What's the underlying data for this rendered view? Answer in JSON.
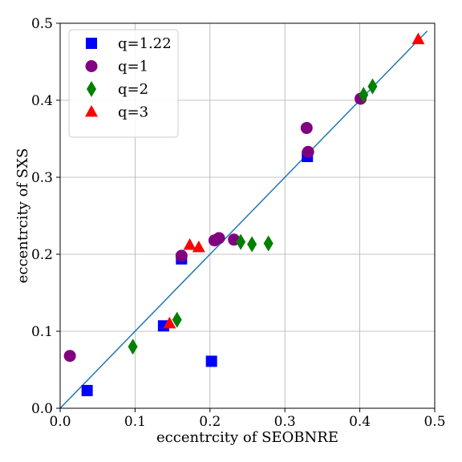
{
  "chart_data": {
    "type": "scatter",
    "title": "",
    "xlabel": "eccentrcity of SEOBNRE",
    "ylabel": "eccentrcity of SXS",
    "xlim": [
      0,
      0.5
    ],
    "ylim": [
      0,
      0.5
    ],
    "xticks": [
      "0.0",
      "0.1",
      "0.2",
      "0.3",
      "0.4",
      "0.5"
    ],
    "yticks": [
      "0.0",
      "0.1",
      "0.2",
      "0.3",
      "0.4",
      "0.5"
    ],
    "grid": true,
    "legend_position": "top-left",
    "reference_line": {
      "x": [
        0,
        0.49
      ],
      "y": [
        0,
        0.49
      ],
      "color": "#1f77b4"
    },
    "series": [
      {
        "name": "q=1.22",
        "marker": "square",
        "color": "#0000ff",
        "points": [
          [
            0.036,
            0.023
          ],
          [
            0.138,
            0.107
          ],
          [
            0.162,
            0.194
          ],
          [
            0.202,
            0.061
          ],
          [
            0.33,
            0.327
          ]
        ]
      },
      {
        "name": "q=1",
        "marker": "circle",
        "color": "#800080",
        "points": [
          [
            0.013,
            0.068
          ],
          [
            0.162,
            0.198
          ],
          [
            0.206,
            0.218
          ],
          [
            0.212,
            0.221
          ],
          [
            0.232,
            0.219
          ],
          [
            0.329,
            0.364
          ],
          [
            0.331,
            0.333
          ],
          [
            0.401,
            0.402
          ]
        ]
      },
      {
        "name": "q=2",
        "marker": "diamond",
        "color": "#008000",
        "points": [
          [
            0.097,
            0.08
          ],
          [
            0.156,
            0.115
          ],
          [
            0.241,
            0.216
          ],
          [
            0.256,
            0.213
          ],
          [
            0.278,
            0.214
          ],
          [
            0.405,
            0.407
          ],
          [
            0.417,
            0.418
          ]
        ]
      },
      {
        "name": "q=3",
        "marker": "triangle",
        "color": "#ff0000",
        "points": [
          [
            0.146,
            0.11
          ],
          [
            0.173,
            0.212
          ],
          [
            0.185,
            0.209
          ],
          [
            0.478,
            0.479
          ]
        ]
      }
    ]
  }
}
